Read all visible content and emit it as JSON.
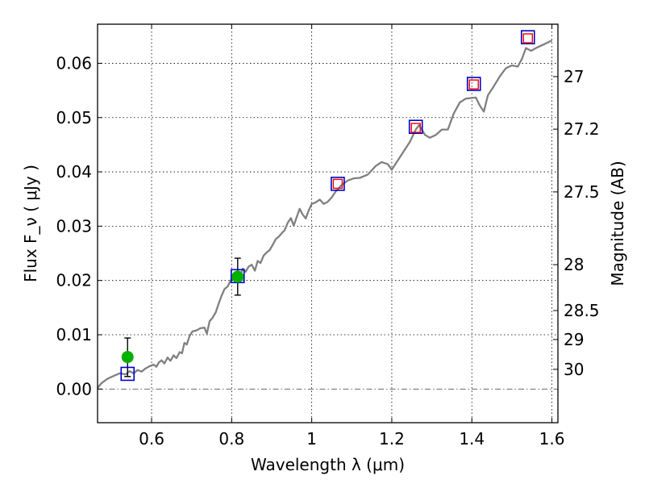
{
  "chart_data": {
    "type": "line",
    "xlabel": "Wavelength  λ (μm)",
    "ylabel": "Flux  F_ν  ( μJy )",
    "ylabel_right": "Magnitude (AB)",
    "xlim": [
      0.465,
      1.615
    ],
    "ylim": [
      -0.0062,
      0.0672
    ],
    "grid": true,
    "x_ticks": [
      {
        "value": 0.6,
        "label": "0.6"
      },
      {
        "value": 0.8,
        "label": "0.8"
      },
      {
        "value": 1.0,
        "label": "1"
      },
      {
        "value": 1.2,
        "label": "1.2"
      },
      {
        "value": 1.4,
        "label": "1.4"
      },
      {
        "value": 1.6,
        "label": "1.6"
      }
    ],
    "y_ticks": [
      {
        "value": 0.0,
        "label": "0.00"
      },
      {
        "value": 0.01,
        "label": "0.01"
      },
      {
        "value": 0.02,
        "label": "0.02"
      },
      {
        "value": 0.03,
        "label": "0.03"
      },
      {
        "value": 0.04,
        "label": "0.04"
      },
      {
        "value": 0.05,
        "label": "0.05"
      },
      {
        "value": 0.06,
        "label": "0.06"
      }
    ],
    "right_ticks": [
      {
        "value": 27,
        "label": "27"
      },
      {
        "value": 27.2,
        "label": "27.2"
      },
      {
        "value": 27.5,
        "label": "27.5"
      },
      {
        "value": 28,
        "label": "28"
      },
      {
        "value": 28.5,
        "label": "28.5"
      },
      {
        "value": 29,
        "label": "29"
      },
      {
        "value": 30,
        "label": "30"
      }
    ],
    "template_spectrum": {
      "color": "#808080",
      "points": [
        [
          0.465,
          0.0002
        ],
        [
          0.475,
          0.0011
        ],
        [
          0.49,
          0.0019
        ],
        [
          0.505,
          0.0024
        ],
        [
          0.52,
          0.0029
        ],
        [
          0.535,
          0.0027
        ],
        [
          0.545,
          0.0033
        ],
        [
          0.555,
          0.0029
        ],
        [
          0.565,
          0.0035
        ],
        [
          0.575,
          0.0032
        ],
        [
          0.585,
          0.0038
        ],
        [
          0.595,
          0.0042
        ],
        [
          0.605,
          0.0045
        ],
        [
          0.612,
          0.0041
        ],
        [
          0.618,
          0.0049
        ],
        [
          0.625,
          0.0053
        ],
        [
          0.632,
          0.0047
        ],
        [
          0.64,
          0.0058
        ],
        [
          0.647,
          0.0052
        ],
        [
          0.655,
          0.0062
        ],
        [
          0.662,
          0.0057
        ],
        [
          0.67,
          0.0068
        ],
        [
          0.676,
          0.0066
        ],
        [
          0.682,
          0.0085
        ],
        [
          0.688,
          0.0082
        ],
        [
          0.695,
          0.0098
        ],
        [
          0.702,
          0.0106
        ],
        [
          0.712,
          0.0108
        ],
        [
          0.722,
          0.0112
        ],
        [
          0.732,
          0.0113
        ],
        [
          0.738,
          0.0102
        ],
        [
          0.745,
          0.0125
        ],
        [
          0.752,
          0.0131
        ],
        [
          0.76,
          0.0141
        ],
        [
          0.768,
          0.0158
        ],
        [
          0.775,
          0.0172
        ],
        [
          0.782,
          0.0184
        ],
        [
          0.79,
          0.0189
        ],
        [
          0.797,
          0.0199
        ],
        [
          0.805,
          0.0208
        ],
        [
          0.812,
          0.0216
        ],
        [
          0.82,
          0.0206
        ],
        [
          0.828,
          0.0222
        ],
        [
          0.835,
          0.0216
        ],
        [
          0.842,
          0.0225
        ],
        [
          0.85,
          0.0229
        ],
        [
          0.858,
          0.0218
        ],
        [
          0.865,
          0.0236
        ],
        [
          0.872,
          0.0232
        ],
        [
          0.88,
          0.0246
        ],
        [
          0.888,
          0.0252
        ],
        [
          0.895,
          0.0256
        ],
        [
          0.902,
          0.0265
        ],
        [
          0.91,
          0.0276
        ],
        [
          0.918,
          0.0281
        ],
        [
          0.925,
          0.0287
        ],
        [
          0.932,
          0.0292
        ],
        [
          0.94,
          0.0306
        ],
        [
          0.948,
          0.0315
        ],
        [
          0.955,
          0.0301
        ],
        [
          0.962,
          0.0316
        ],
        [
          0.97,
          0.0332
        ],
        [
          0.977,
          0.0322
        ],
        [
          0.985,
          0.0314
        ],
        [
          0.992,
          0.0328
        ],
        [
          1.0,
          0.0341
        ],
        [
          1.01,
          0.0344
        ],
        [
          1.02,
          0.0349
        ],
        [
          1.03,
          0.0341
        ],
        [
          1.04,
          0.0345
        ],
        [
          1.05,
          0.0353
        ],
        [
          1.06,
          0.0364
        ],
        [
          1.075,
          0.0376
        ],
        [
          1.09,
          0.0384
        ],
        [
          1.105,
          0.0388
        ],
        [
          1.12,
          0.0389
        ],
        [
          1.14,
          0.0395
        ],
        [
          1.16,
          0.0411
        ],
        [
          1.175,
          0.0418
        ],
        [
          1.19,
          0.0414
        ],
        [
          1.2,
          0.0404
        ],
        [
          1.215,
          0.0421
        ],
        [
          1.23,
          0.0438
        ],
        [
          1.245,
          0.0455
        ],
        [
          1.26,
          0.0478
        ],
        [
          1.268,
          0.0486
        ],
        [
          1.275,
          0.0478
        ],
        [
          1.283,
          0.0468
        ],
        [
          1.295,
          0.0463
        ],
        [
          1.31,
          0.0468
        ],
        [
          1.325,
          0.0478
        ],
        [
          1.34,
          0.0478
        ],
        [
          1.355,
          0.0508
        ],
        [
          1.37,
          0.0528
        ],
        [
          1.385,
          0.0535
        ],
        [
          1.4,
          0.0536
        ],
        [
          1.41,
          0.0537
        ],
        [
          1.42,
          0.0522
        ],
        [
          1.43,
          0.0511
        ],
        [
          1.44,
          0.0541
        ],
        [
          1.455,
          0.0558
        ],
        [
          1.47,
          0.0576
        ],
        [
          1.485,
          0.0591
        ],
        [
          1.5,
          0.0596
        ],
        [
          1.515,
          0.0594
        ],
        [
          1.525,
          0.0608
        ],
        [
          1.535,
          0.0628
        ],
        [
          1.548,
          0.0623
        ],
        [
          1.56,
          0.0628
        ],
        [
          1.58,
          0.0635
        ],
        [
          1.6,
          0.0642
        ]
      ]
    },
    "model_fluxes": {
      "color": "#0000cc",
      "marker": "open-square",
      "points": [
        [
          0.54,
          0.0028
        ],
        [
          0.815,
          0.0208
        ],
        [
          1.065,
          0.0378
        ],
        [
          1.26,
          0.0483
        ],
        [
          1.405,
          0.0562
        ],
        [
          1.54,
          0.0648
        ]
      ]
    },
    "upper_limits": {
      "color": "#ff0000",
      "marker": "open-square-small",
      "points": [
        [
          1.065,
          0.0378
        ],
        [
          1.26,
          0.0481
        ],
        [
          1.405,
          0.0561
        ],
        [
          1.54,
          0.0646
        ]
      ]
    },
    "observed_fluxes": {
      "color": "#00b000",
      "marker": "filled-circle",
      "points": [
        {
          "x": 0.54,
          "y": 0.0059,
          "err_low": 0.0036,
          "err_high": 0.0035
        },
        {
          "x": 0.815,
          "y": 0.0207,
          "err_low": 0.0034,
          "err_high": 0.0034
        }
      ]
    }
  }
}
